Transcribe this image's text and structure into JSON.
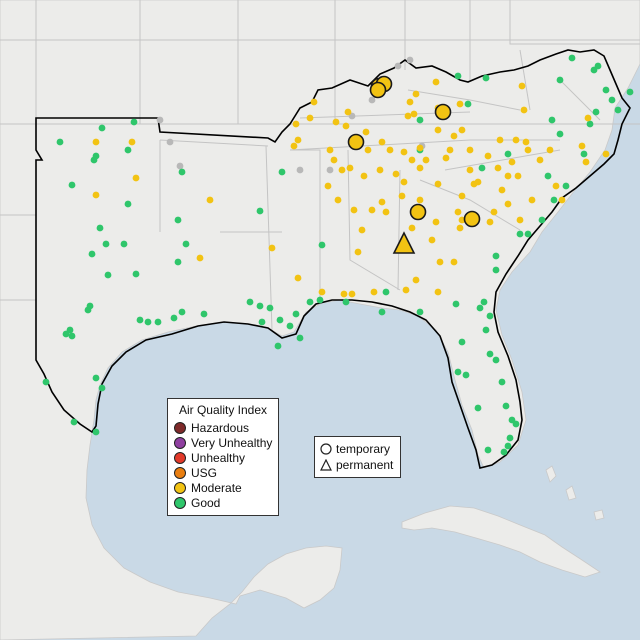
{
  "colors": {
    "ocean": "#c9d9e6",
    "land": "#ececea",
    "land_south": "#e6e4e0",
    "state_border": "#c4c4c4",
    "region_outline": "#000000",
    "hazardous": "#7e2a2a",
    "very_unhealthy": "#8f3fa0",
    "unhealthy": "#e23a2a",
    "usg": "#e97e10",
    "moderate": "#f2c313",
    "good": "#2fc66b",
    "missing": "#b8b8b8"
  },
  "legend": {
    "title": "Air Quality Index",
    "items": [
      {
        "label": "Hazardous",
        "color": "#7e2a2a"
      },
      {
        "label": "Very Unhealthy",
        "color": "#8f3fa0"
      },
      {
        "label": "Unhealthy",
        "color": "#e23a2a"
      },
      {
        "label": "USG",
        "color": "#e97e10"
      },
      {
        "label": "Moderate",
        "color": "#f2c313"
      },
      {
        "label": "Good",
        "color": "#2fc66b"
      }
    ]
  },
  "monitor_types": {
    "temporary_label": "temporary",
    "permanent_label": "permanent"
  }
}
